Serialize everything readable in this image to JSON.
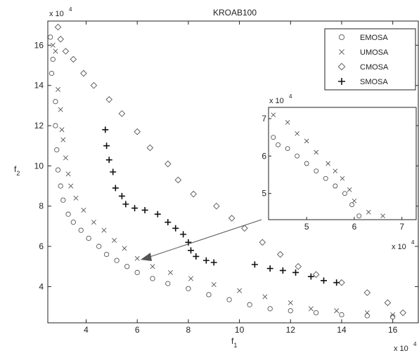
{
  "chart_data": {
    "type": "scatter",
    "title": "KROAB100",
    "xlabel": "f",
    "xlabel_sub": "1",
    "ylabel": "f",
    "ylabel_sub": "2",
    "x_multiplier": "x 10",
    "y_multiplier": "x 10",
    "exponent": "4",
    "xlim": [
      2.5,
      17
    ],
    "ylim": [
      2.2,
      17.2
    ],
    "x_ticks": [
      "4",
      "6",
      "8",
      "10",
      "12",
      "14",
      "16"
    ],
    "y_ticks": [
      "4",
      "6",
      "8",
      "10",
      "12",
      "14",
      "16"
    ],
    "legend_position": "top-right",
    "colors": {
      "markers": "#555555",
      "smosa": "#111111",
      "axis": "#222222"
    },
    "series": [
      {
        "name": "EMOSA",
        "marker": "circle",
        "points": [
          [
            2.6,
            16.4
          ],
          [
            2.7,
            15.3
          ],
          [
            2.65,
            14.6
          ],
          [
            2.8,
            13.2
          ],
          [
            2.8,
            12.0
          ],
          [
            2.85,
            10.8
          ],
          [
            2.9,
            9.8
          ],
          [
            3.0,
            9.0
          ],
          [
            3.1,
            8.3
          ],
          [
            3.3,
            7.6
          ],
          [
            3.5,
            7.2
          ],
          [
            3.8,
            6.8
          ],
          [
            4.1,
            6.4
          ],
          [
            4.5,
            6.0
          ],
          [
            4.8,
            5.6
          ],
          [
            5.2,
            5.3
          ],
          [
            5.6,
            5.0
          ],
          [
            6.0,
            4.7
          ],
          [
            6.6,
            4.4
          ],
          [
            7.2,
            4.15
          ],
          [
            8.0,
            3.9
          ],
          [
            8.8,
            3.6
          ],
          [
            9.6,
            3.35
          ],
          [
            10.4,
            3.1
          ],
          [
            11.2,
            2.9
          ],
          [
            12.0,
            2.8
          ],
          [
            13.0,
            2.7
          ],
          [
            14.0,
            2.6
          ],
          [
            15.0,
            2.55
          ],
          [
            16.0,
            2.5
          ]
        ]
      },
      {
        "name": "UMOSA",
        "marker": "x",
        "points": [
          [
            2.7,
            16.0
          ],
          [
            2.8,
            15.7
          ],
          [
            2.9,
            13.8
          ],
          [
            3.0,
            12.8
          ],
          [
            3.05,
            11.8
          ],
          [
            3.1,
            11.3
          ],
          [
            3.2,
            10.4
          ],
          [
            3.3,
            9.6
          ],
          [
            3.4,
            9.0
          ],
          [
            3.6,
            8.4
          ],
          [
            3.9,
            7.8
          ],
          [
            4.3,
            7.2
          ],
          [
            4.7,
            6.8
          ],
          [
            5.1,
            6.3
          ],
          [
            5.5,
            5.9
          ],
          [
            6.0,
            5.4
          ],
          [
            6.6,
            5.0
          ],
          [
            7.3,
            4.7
          ],
          [
            8.1,
            4.4
          ],
          [
            9.0,
            4.1
          ],
          [
            10.0,
            3.8
          ],
          [
            11.0,
            3.5
          ],
          [
            12.0,
            3.2
          ],
          [
            12.8,
            2.9
          ],
          [
            13.8,
            2.8
          ],
          [
            15.0,
            2.7
          ],
          [
            16.0,
            2.6
          ]
        ]
      },
      {
        "name": "CMOSA",
        "marker": "diamond",
        "points": [
          [
            2.9,
            16.9
          ],
          [
            3.0,
            16.3
          ],
          [
            3.2,
            15.7
          ],
          [
            3.5,
            15.3
          ],
          [
            3.9,
            14.6
          ],
          [
            4.3,
            14.0
          ],
          [
            4.9,
            13.3
          ],
          [
            5.4,
            12.6
          ],
          [
            6.0,
            11.7
          ],
          [
            6.5,
            10.9
          ],
          [
            7.2,
            10.1
          ],
          [
            7.6,
            9.3
          ],
          [
            8.2,
            8.6
          ],
          [
            9.1,
            8.0
          ],
          [
            9.7,
            7.4
          ],
          [
            10.2,
            6.9
          ],
          [
            10.9,
            6.2
          ],
          [
            11.6,
            5.6
          ],
          [
            12.3,
            5.0
          ],
          [
            13.0,
            4.6
          ],
          [
            14.0,
            4.2
          ],
          [
            15.0,
            3.7
          ],
          [
            15.8,
            3.2
          ],
          [
            16.4,
            2.7
          ]
        ]
      },
      {
        "name": "SMOSA",
        "marker": "plus",
        "points": [
          [
            4.75,
            11.8
          ],
          [
            4.8,
            11.0
          ],
          [
            4.9,
            10.3
          ],
          [
            5.05,
            9.7
          ],
          [
            5.15,
            8.9
          ],
          [
            5.4,
            8.5
          ],
          [
            5.55,
            8.1
          ],
          [
            5.9,
            7.9
          ],
          [
            6.3,
            7.8
          ],
          [
            6.8,
            7.6
          ],
          [
            7.2,
            7.2
          ],
          [
            7.5,
            6.9
          ],
          [
            7.8,
            6.6
          ],
          [
            8.0,
            6.2
          ],
          [
            8.1,
            5.8
          ],
          [
            8.3,
            5.5
          ],
          [
            8.7,
            5.3
          ],
          [
            9.0,
            5.2
          ],
          [
            10.6,
            5.1
          ],
          [
            11.2,
            4.9
          ],
          [
            11.7,
            4.8
          ],
          [
            12.2,
            4.7
          ],
          [
            12.8,
            4.5
          ],
          [
            13.3,
            4.3
          ],
          [
            13.8,
            4.2
          ]
        ]
      }
    ],
    "inset": {
      "x_multiplier": "x 10",
      "y_multiplier": "x 10",
      "exponent": "4",
      "xlim": [
        4.2,
        7.3
      ],
      "ylim": [
        4.3,
        7.3
      ],
      "x_ticks": [
        "5",
        "6",
        "7"
      ],
      "y_ticks": [
        "5",
        "6",
        "7"
      ],
      "series": [
        {
          "name": "EMOSA",
          "marker": "circle",
          "points": [
            [
              4.3,
              6.5
            ],
            [
              4.4,
              6.3
            ],
            [
              4.6,
              6.2
            ],
            [
              4.8,
              6.0
            ],
            [
              5.0,
              5.8
            ],
            [
              5.2,
              5.6
            ],
            [
              5.4,
              5.4
            ],
            [
              5.6,
              5.2
            ],
            [
              5.8,
              5.0
            ],
            [
              5.95,
              4.7
            ],
            [
              6.1,
              4.4
            ]
          ]
        },
        {
          "name": "UMOSA",
          "marker": "x",
          "points": [
            [
              4.3,
              7.1
            ],
            [
              4.6,
              6.9
            ],
            [
              4.8,
              6.6
            ],
            [
              5.0,
              6.4
            ],
            [
              5.2,
              6.1
            ],
            [
              5.45,
              5.8
            ],
            [
              5.6,
              5.6
            ],
            [
              5.75,
              5.4
            ],
            [
              5.9,
              5.1
            ],
            [
              6.0,
              4.8
            ],
            [
              6.3,
              4.5
            ],
            [
              6.6,
              4.4
            ]
          ]
        }
      ]
    }
  }
}
